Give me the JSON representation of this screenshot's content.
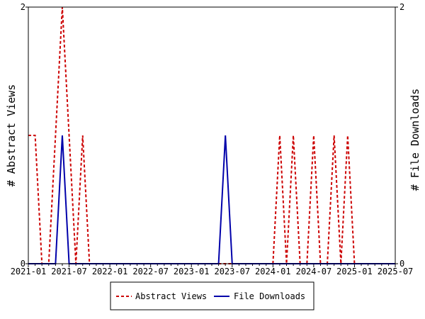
{
  "chart_data": {
    "type": "line",
    "ylabel_left": "# Abstract Views",
    "ylabel_right": "# File Downloads",
    "ylim": [
      0,
      2
    ],
    "yticks_left": [
      "0",
      "2"
    ],
    "yticks_right": [
      "0",
      "2"
    ],
    "xlim": [
      "2021-01",
      "2025-07"
    ],
    "xticks": [
      "2021-01",
      "2021-07",
      "2022-01",
      "2022-07",
      "2023-01",
      "2023-07",
      "2024-01",
      "2024-07",
      "2025-01",
      "2025-07"
    ],
    "legend_position": "bottom",
    "series": [
      {
        "name": "Abstract Views",
        "color": "#cc0000",
        "style": "dashed",
        "points": [
          [
            "2021-01",
            1
          ],
          [
            "2021-02",
            1
          ],
          [
            "2021-03",
            0
          ],
          [
            "2021-04",
            0
          ],
          [
            "2021-05",
            1
          ],
          [
            "2021-06",
            2
          ],
          [
            "2021-07",
            1
          ],
          [
            "2021-08",
            0
          ],
          [
            "2021-09",
            1
          ],
          [
            "2021-10",
            0
          ],
          [
            "2021-11",
            0
          ],
          [
            "2021-12",
            0
          ],
          [
            "2022-01",
            0
          ],
          [
            "2022-02",
            0
          ],
          [
            "2022-03",
            0
          ],
          [
            "2022-04",
            0
          ],
          [
            "2022-05",
            0
          ],
          [
            "2022-06",
            0
          ],
          [
            "2022-07",
            0
          ],
          [
            "2022-08",
            0
          ],
          [
            "2022-09",
            0
          ],
          [
            "2022-10",
            0
          ],
          [
            "2022-11",
            0
          ],
          [
            "2022-12",
            0
          ],
          [
            "2023-01",
            0
          ],
          [
            "2023-02",
            0
          ],
          [
            "2023-03",
            0
          ],
          [
            "2023-04",
            0
          ],
          [
            "2023-05",
            0
          ],
          [
            "2023-06",
            0
          ],
          [
            "2023-07",
            0
          ],
          [
            "2023-08",
            0
          ],
          [
            "2023-09",
            0
          ],
          [
            "2023-10",
            0
          ],
          [
            "2023-11",
            0
          ],
          [
            "2023-12",
            0
          ],
          [
            "2024-01",
            0
          ],
          [
            "2024-02",
            1
          ],
          [
            "2024-03",
            0
          ],
          [
            "2024-04",
            1
          ],
          [
            "2024-05",
            0
          ],
          [
            "2024-06",
            0
          ],
          [
            "2024-07",
            1
          ],
          [
            "2024-08",
            0
          ],
          [
            "2024-09",
            0
          ],
          [
            "2024-10",
            1
          ],
          [
            "2024-11",
            0
          ],
          [
            "2024-12",
            1
          ],
          [
            "2025-01",
            0
          ],
          [
            "2025-02",
            0
          ],
          [
            "2025-03",
            0
          ],
          [
            "2025-04",
            0
          ],
          [
            "2025-05",
            0
          ],
          [
            "2025-06",
            0
          ],
          [
            "2025-07",
            0
          ]
        ]
      },
      {
        "name": "File Downloads",
        "color": "#0000aa",
        "style": "solid",
        "points": [
          [
            "2021-01",
            0
          ],
          [
            "2021-02",
            0
          ],
          [
            "2021-03",
            0
          ],
          [
            "2021-04",
            0
          ],
          [
            "2021-05",
            0
          ],
          [
            "2021-06",
            1
          ],
          [
            "2021-07",
            0
          ],
          [
            "2021-08",
            0
          ],
          [
            "2021-09",
            0
          ],
          [
            "2021-10",
            0
          ],
          [
            "2021-11",
            0
          ],
          [
            "2021-12",
            0
          ],
          [
            "2022-01",
            0
          ],
          [
            "2022-02",
            0
          ],
          [
            "2022-03",
            0
          ],
          [
            "2022-04",
            0
          ],
          [
            "2022-05",
            0
          ],
          [
            "2022-06",
            0
          ],
          [
            "2022-07",
            0
          ],
          [
            "2022-08",
            0
          ],
          [
            "2022-09",
            0
          ],
          [
            "2022-10",
            0
          ],
          [
            "2022-11",
            0
          ],
          [
            "2022-12",
            0
          ],
          [
            "2023-01",
            0
          ],
          [
            "2023-02",
            0
          ],
          [
            "2023-03",
            0
          ],
          [
            "2023-04",
            0
          ],
          [
            "2023-05",
            0
          ],
          [
            "2023-06",
            1
          ],
          [
            "2023-07",
            0
          ],
          [
            "2023-08",
            0
          ],
          [
            "2023-09",
            0
          ],
          [
            "2023-10",
            0
          ],
          [
            "2023-11",
            0
          ],
          [
            "2023-12",
            0
          ],
          [
            "2024-01",
            0
          ],
          [
            "2024-02",
            0
          ],
          [
            "2024-03",
            0
          ],
          [
            "2024-04",
            0
          ],
          [
            "2024-05",
            0
          ],
          [
            "2024-06",
            0
          ],
          [
            "2024-07",
            0
          ],
          [
            "2024-08",
            0
          ],
          [
            "2024-09",
            0
          ],
          [
            "2024-10",
            0
          ],
          [
            "2024-11",
            0
          ],
          [
            "2024-12",
            0
          ],
          [
            "2025-01",
            0
          ],
          [
            "2025-02",
            0
          ],
          [
            "2025-03",
            0
          ],
          [
            "2025-04",
            0
          ],
          [
            "2025-05",
            0
          ],
          [
            "2025-06",
            0
          ],
          [
            "2025-07",
            0
          ]
        ]
      }
    ]
  }
}
